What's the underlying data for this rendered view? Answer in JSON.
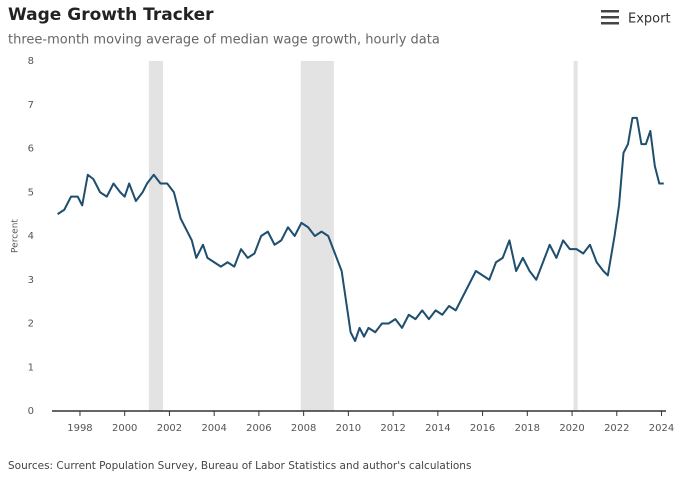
{
  "header": {
    "export": "Export"
  },
  "chart_data": {
    "type": "line",
    "title": "Wage Growth Tracker",
    "subtitle": "three-month moving average of median wage growth, hourly data",
    "y_label": "Percent",
    "source": "Sources: Current Population Survey, Bureau of Labor Statistics and author's calculations",
    "color": "#1f4e6e",
    "shaded_periods": [
      [
        2001.08,
        2001.71
      ],
      [
        2007.87,
        2009.35
      ],
      [
        2020.07,
        2020.25
      ]
    ],
    "shade_color": "#e3e3e3",
    "xlim": [
      1996.75,
      2024.2
    ],
    "ylim": [
      0,
      8
    ],
    "xticks": [
      1998,
      2000,
      2002,
      2004,
      2006,
      2008,
      2010,
      2012,
      2014,
      2016,
      2018,
      2020,
      2022,
      2024
    ],
    "yticks": [
      0,
      1,
      2,
      3,
      4,
      5,
      6,
      7,
      8
    ],
    "grid": false,
    "x": [
      1997.0,
      1997.3,
      1997.6,
      1997.9,
      1998.1,
      1998.35,
      1998.6,
      1998.9,
      1999.2,
      1999.5,
      1999.8,
      2000.0,
      2000.2,
      2000.5,
      2000.8,
      2001.0,
      2001.3,
      2001.6,
      2001.9,
      2002.2,
      2002.5,
      2002.8,
      2003.0,
      2003.2,
      2003.5,
      2003.7,
      2004.0,
      2004.3,
      2004.6,
      2004.9,
      2005.2,
      2005.5,
      2005.8,
      2006.1,
      2006.4,
      2006.7,
      2007.0,
      2007.3,
      2007.6,
      2007.9,
      2008.2,
      2008.5,
      2008.8,
      2009.1,
      2009.4,
      2009.7,
      2009.9,
      2010.1,
      2010.3,
      2010.5,
      2010.7,
      2010.9,
      2011.2,
      2011.5,
      2011.8,
      2012.1,
      2012.4,
      2012.7,
      2013.0,
      2013.3,
      2013.6,
      2013.9,
      2014.2,
      2014.5,
      2014.8,
      2015.1,
      2015.4,
      2015.7,
      2016.0,
      2016.3,
      2016.6,
      2016.9,
      2017.2,
      2017.5,
      2017.8,
      2018.1,
      2018.4,
      2018.7,
      2019.0,
      2019.3,
      2019.6,
      2019.9,
      2020.2,
      2020.5,
      2020.8,
      2021.1,
      2021.4,
      2021.6,
      2021.9,
      2022.1,
      2022.3,
      2022.5,
      2022.7,
      2022.9,
      2023.1,
      2023.3,
      2023.5,
      2023.7,
      2023.9,
      2024.1
    ],
    "values": [
      4.5,
      4.6,
      4.9,
      4.9,
      4.7,
      5.4,
      5.3,
      5.0,
      4.9,
      5.2,
      5.0,
      4.9,
      5.2,
      4.8,
      5.0,
      5.2,
      5.4,
      5.2,
      5.2,
      5.0,
      4.4,
      4.1,
      3.9,
      3.5,
      3.8,
      3.5,
      3.4,
      3.3,
      3.4,
      3.3,
      3.7,
      3.5,
      3.6,
      4.0,
      4.1,
      3.8,
      3.9,
      4.2,
      4.0,
      4.3,
      4.2,
      4.0,
      4.1,
      4.0,
      3.6,
      3.2,
      2.5,
      1.8,
      1.6,
      1.9,
      1.7,
      1.9,
      1.8,
      2.0,
      2.0,
      2.1,
      1.9,
      2.2,
      2.1,
      2.3,
      2.1,
      2.3,
      2.2,
      2.4,
      2.3,
      2.6,
      2.9,
      3.2,
      3.1,
      3.0,
      3.4,
      3.5,
      3.9,
      3.2,
      3.5,
      3.2,
      3.0,
      3.4,
      3.8,
      3.5,
      3.9,
      3.7,
      3.7,
      3.6,
      3.8,
      3.4,
      3.2,
      3.1,
      4.0,
      4.7,
      5.9,
      6.1,
      6.7,
      6.7,
      6.1,
      6.1,
      6.4,
      5.6,
      5.2,
      5.2
    ]
  }
}
